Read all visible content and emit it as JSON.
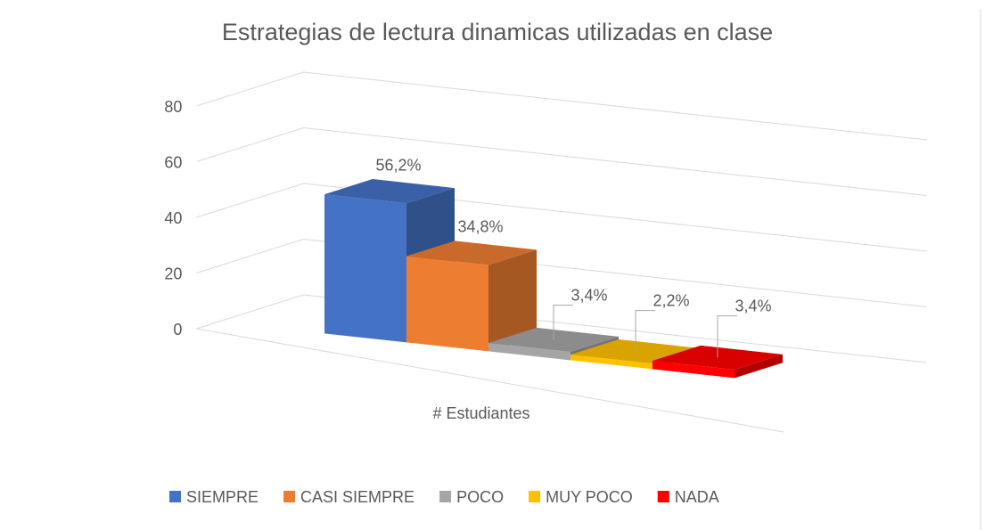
{
  "chart_data": {
    "type": "bar3d",
    "title": "Estrategias de lectura dinamicas utilizadas en clase",
    "categories": [
      "# Estudiantes"
    ],
    "series": [
      {
        "name": "SIEMPRE",
        "color": "#4472c4",
        "values": [
          50
        ],
        "value_labels": [
          "56,2%"
        ]
      },
      {
        "name": "CASI SIEMPRE",
        "color": "#ed7d31",
        "values": [
          31
        ],
        "value_labels": [
          "34,8%"
        ]
      },
      {
        "name": "POCO",
        "color": "#a5a5a5",
        "values": [
          3
        ],
        "value_labels": [
          "3,4%"
        ]
      },
      {
        "name": "MUY POCO",
        "color": "#ffc000",
        "values": [
          2
        ],
        "value_labels": [
          "2,2%"
        ]
      },
      {
        "name": "NADA",
        "color": "#ff0000",
        "values": [
          3
        ],
        "value_labels": [
          "3,4%"
        ]
      }
    ],
    "ylim": [
      0,
      80
    ],
    "yticks": [
      0,
      20,
      40,
      60,
      80
    ],
    "grid": true,
    "legend": "bottom"
  }
}
